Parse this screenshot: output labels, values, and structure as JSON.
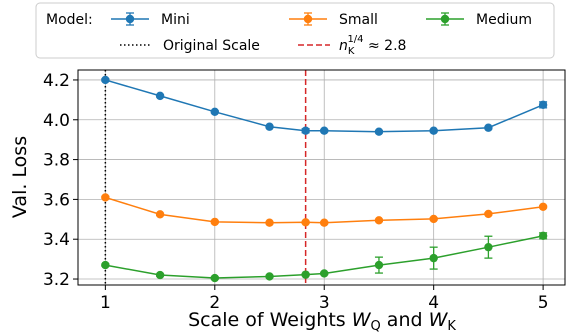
{
  "chart_data": {
    "type": "line",
    "xlabel_prefix": "Scale of Weights ",
    "xlabel_w1": "W",
    "xlabel_s1": "Q",
    "xlabel_and": " and ",
    "xlabel_w2": "W",
    "xlabel_s2": "K",
    "ylabel": "Val. Loss",
    "xlim": [
      0.75,
      5.2
    ],
    "ylim": [
      3.17,
      4.25
    ],
    "xticks": [
      1,
      2,
      3,
      4,
      5
    ],
    "xtick_labels": [
      "1",
      "2",
      "3",
      "4",
      "5"
    ],
    "yticks": [
      3.2,
      3.4,
      3.6,
      3.8,
      4.0,
      4.2
    ],
    "ytick_labels": [
      "3.2",
      "3.4",
      "3.6",
      "3.8",
      "4.0",
      "4.2"
    ],
    "grid": true,
    "legend": {
      "title": "Model:",
      "placement": "top (above plot)",
      "line_labels": {
        "original": "Original Scale",
        "n_base": "n",
        "n_sub": "K",
        "n_sup": "1/4",
        "n_tail": " ≈ 2.8"
      }
    },
    "x": [
      1,
      1.5,
      2,
      2.5,
      2.83,
      3,
      3.5,
      4,
      4.5,
      5
    ],
    "series": [
      {
        "name": "Mini",
        "color": "#1f77b4",
        "values": [
          4.2,
          4.12,
          4.04,
          3.965,
          3.945,
          3.945,
          3.94,
          3.945,
          3.96,
          4.075
        ],
        "errors": [
          0.005,
          0.005,
          0.005,
          0.005,
          0.01,
          0.005,
          0.005,
          0.005,
          0.005,
          0.015
        ]
      },
      {
        "name": "Small",
        "color": "#ff7f0e",
        "values": [
          3.61,
          3.525,
          3.487,
          3.483,
          3.485,
          3.483,
          3.495,
          3.502,
          3.527,
          3.563
        ],
        "errors": [
          0.005,
          0.005,
          0.005,
          0.005,
          0.005,
          0.005,
          0.005,
          0.005,
          0.005,
          0.005
        ]
      },
      {
        "name": "Medium",
        "color": "#2ca02c",
        "values": [
          3.27,
          3.22,
          3.205,
          3.213,
          3.222,
          3.228,
          3.27,
          3.305,
          3.36,
          3.417
        ],
        "errors": [
          0.005,
          0.005,
          0.005,
          0.005,
          0.005,
          0.005,
          0.04,
          0.055,
          0.055,
          0.015
        ]
      }
    ],
    "vlines": [
      {
        "name": "Original Scale",
        "x": 1,
        "style": "dotted",
        "color": "#000000"
      },
      {
        "name": "n_K^{1/4} ≈ 2.8",
        "x": 2.83,
        "style": "dashed",
        "color": "#d62728"
      }
    ]
  }
}
